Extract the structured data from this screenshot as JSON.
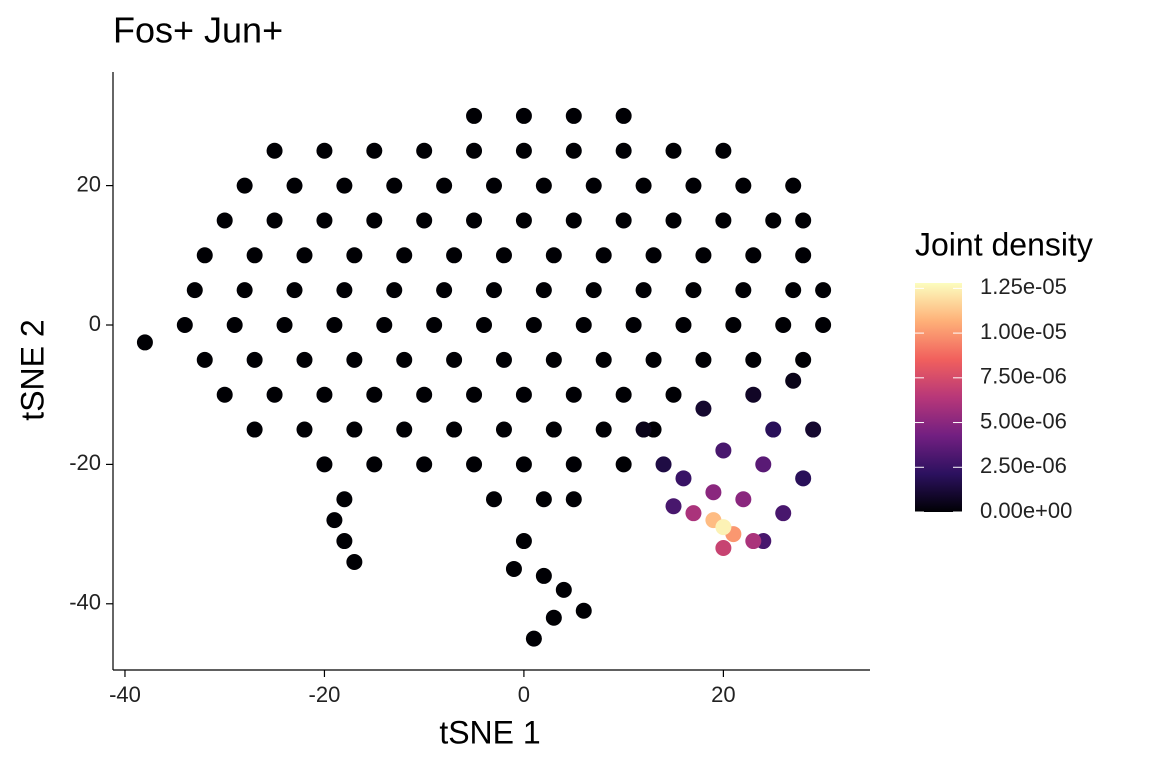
{
  "chart_data": {
    "type": "scatter",
    "title": "Fos+ Jun+",
    "x_label": "tSNE 1",
    "y_label": "tSNE 2",
    "legend_title": "Joint density",
    "xlim": [
      -41.2,
      34.7
    ],
    "ylim": [
      -49.5,
      36.3
    ],
    "xticks": [
      -40,
      -20,
      0,
      20
    ],
    "yticks": [
      -40,
      -20,
      0,
      20
    ],
    "clim": [
      0,
      1.28e-05
    ],
    "cticks": [
      {
        "value": 0,
        "label": "0.00e+00"
      },
      {
        "value": 2.5e-06,
        "label": "2.50e-06"
      },
      {
        "value": 5e-06,
        "label": "5.00e-06"
      },
      {
        "value": 7.5e-06,
        "label": "7.50e-06"
      },
      {
        "value": 1e-05,
        "label": "1.00e-05"
      },
      {
        "value": 1.25e-05,
        "label": "1.25e-05"
      }
    ],
    "colormap": [
      "#000004",
      "#2c115f",
      "#721f81",
      "#b73779",
      "#f1605d",
      "#feb078",
      "#fcfdbf"
    ],
    "x": [
      -5,
      0,
      5,
      10,
      -25,
      -20,
      -15,
      -10,
      -5,
      0,
      5,
      10,
      15,
      20,
      -28,
      -23,
      -18,
      -13,
      -8,
      -3,
      2,
      7,
      12,
      17,
      22,
      27,
      -30,
      -25,
      -20,
      -15,
      -10,
      -5,
      0,
      5,
      10,
      15,
      20,
      25,
      28,
      -32,
      -27,
      -22,
      -17,
      -12,
      -7,
      -2,
      3,
      8,
      13,
      18,
      23,
      28,
      -33,
      -28,
      -23,
      -18,
      -13,
      -8,
      -3,
      2,
      7,
      12,
      17,
      22,
      27,
      30,
      -34,
      -29,
      -24,
      -19,
      -14,
      -9,
      -4,
      1,
      6,
      11,
      16,
      21,
      26,
      30,
      -32,
      -27,
      -22,
      -17,
      -12,
      -7,
      -2,
      3,
      8,
      13,
      18,
      23,
      28,
      -30,
      -25,
      -20,
      -15,
      -10,
      -5,
      0,
      5,
      10,
      15,
      -27,
      -22,
      -17,
      -12,
      -7,
      -2,
      3,
      8,
      13,
      -20,
      -15,
      -10,
      -5,
      0,
      5,
      10,
      -18,
      -3,
      2,
      5,
      -19,
      -18,
      -17,
      -38,
      -1,
      2,
      4,
      6,
      3,
      1,
      0,
      27,
      23,
      12,
      18,
      29,
      14,
      28,
      16,
      25,
      20,
      24,
      15,
      26,
      24,
      22,
      19,
      23,
      17,
      20,
      21,
      19,
      20
    ],
    "y": [
      30,
      30,
      30,
      30,
      25,
      25,
      25,
      25,
      25,
      25,
      25,
      25,
      25,
      25,
      20,
      20,
      20,
      20,
      20,
      20,
      20,
      20,
      20,
      20,
      20,
      20,
      15,
      15,
      15,
      15,
      15,
      15,
      15,
      15,
      15,
      15,
      15,
      15,
      15,
      10,
      10,
      10,
      10,
      10,
      10,
      10,
      10,
      10,
      10,
      10,
      10,
      10,
      5,
      5,
      5,
      5,
      5,
      5,
      5,
      5,
      5,
      5,
      5,
      5,
      5,
      5,
      0,
      0,
      0,
      0,
      0,
      0,
      0,
      0,
      0,
      0,
      0,
      0,
      0,
      0,
      -5,
      -5,
      -5,
      -5,
      -5,
      -5,
      -5,
      -5,
      -5,
      -5,
      -5,
      -5,
      -5,
      -10,
      -10,
      -10,
      -10,
      -10,
      -10,
      -10,
      -10,
      -10,
      -10,
      -15,
      -15,
      -15,
      -15,
      -15,
      -15,
      -15,
      -15,
      -15,
      -20,
      -20,
      -20,
      -20,
      -20,
      -20,
      -20,
      -25,
      -25,
      -25,
      -25,
      -28,
      -31,
      -34,
      -2.5,
      -35,
      -36,
      -38,
      -41,
      -42,
      -45,
      -31,
      -8,
      -10,
      -15,
      -12,
      -15,
      -20,
      -22,
      -22,
      -15,
      -18,
      -20,
      -26,
      -27,
      -31,
      -25,
      -24,
      -31,
      -27,
      -32,
      -30,
      -28,
      -29
    ],
    "values": [
      0,
      0,
      0,
      0,
      0,
      0,
      0,
      0,
      0,
      0,
      0,
      0,
      0,
      0,
      0,
      0,
      0,
      0,
      0,
      0,
      0,
      0,
      0,
      0,
      0,
      0,
      0,
      0,
      0,
      0,
      0,
      0,
      0,
      0,
      0,
      0,
      0,
      0,
      0,
      0,
      0,
      0,
      0,
      0,
      0,
      0,
      0,
      0,
      0,
      0,
      0,
      0,
      0,
      0,
      0,
      0,
      0,
      0,
      0,
      0,
      0,
      0,
      0,
      0,
      0,
      0,
      0,
      0,
      0,
      0,
      0,
      0,
      0,
      0,
      0,
      0,
      0,
      0,
      0,
      0,
      0,
      0,
      0,
      0,
      0,
      0,
      0,
      0,
      0,
      0,
      0,
      0,
      0,
      0,
      0,
      0,
      0,
      0,
      0,
      0,
      0,
      0,
      0,
      0,
      0,
      0,
      0,
      0,
      0,
      0,
      0,
      0,
      0,
      0,
      0,
      0,
      0,
      0,
      0,
      0,
      0,
      0,
      0,
      0,
      0,
      0,
      0,
      0,
      0,
      0,
      0,
      0,
      0,
      0,
      5e-07,
      8e-07,
      5e-07,
      1e-06,
      1e-06,
      1.5e-06,
      2e-06,
      2.5e-06,
      2e-06,
      3e-06,
      3.5e-06,
      3e-06,
      3e-06,
      3e-06,
      5e-06,
      5e-06,
      6e-06,
      6e-06,
      7e-06,
      1e-05,
      1.1e-05,
      1.25e-05
    ]
  }
}
